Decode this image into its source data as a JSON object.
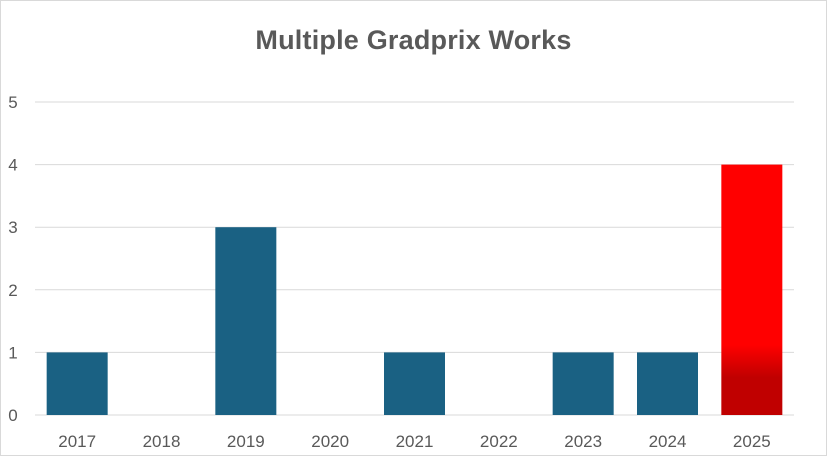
{
  "chart_data": {
    "type": "bar",
    "title": "Multiple Gradprix Works",
    "xlabel": "",
    "ylabel": "",
    "categories": [
      "2017",
      "2018",
      "2019",
      "2020",
      "2021",
      "2022",
      "2023",
      "2024",
      "2025"
    ],
    "values": [
      1,
      0,
      3,
      0,
      1,
      0,
      1,
      1,
      4
    ],
    "ylim": [
      0,
      5
    ],
    "yticks": [
      "0",
      "1",
      "2",
      "3",
      "4",
      "5"
    ],
    "grid": true,
    "legend": "none",
    "colors": {
      "bar": "#1a6183",
      "highlight_top": "#ff0000",
      "highlight_bottom": "#c00000",
      "grid": "#d9d9d9",
      "text": "#595959"
    },
    "highlight_category": "2025"
  }
}
